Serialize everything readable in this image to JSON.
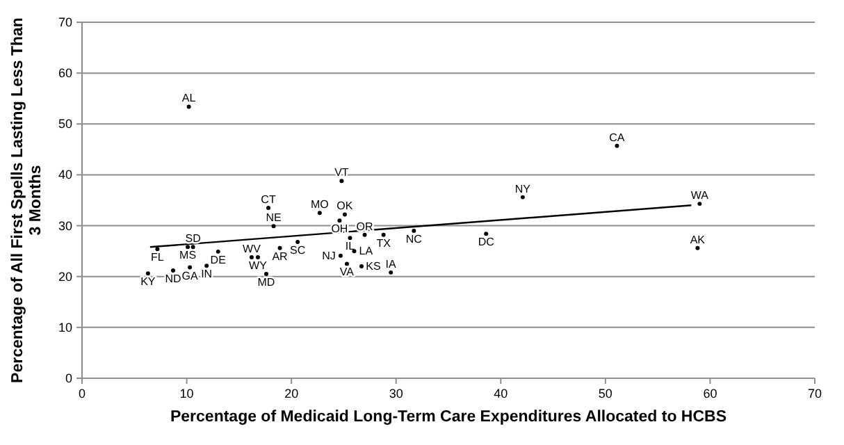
{
  "chart_data": {
    "type": "scatter",
    "xlabel": "Percentage of Medicaid Long-Term Care Expenditures Allocated to HCBS",
    "ylabel": "Percentage of All First Spells Lasting Less Than 3 Months",
    "xlim": [
      0,
      70
    ],
    "ylim": [
      0,
      70
    ],
    "xticks": [
      0,
      10,
      20,
      30,
      40,
      50,
      60,
      70
    ],
    "yticks": [
      0,
      10,
      20,
      30,
      40,
      50,
      60,
      70
    ],
    "grid": "y",
    "marker": "circle",
    "series": [
      {
        "name": "AL",
        "color": "#000000",
        "x": [
          10.2
        ],
        "values": [
          53.4
        ]
      },
      {
        "name": "VT",
        "color": "#000000",
        "x": [
          24.8
        ],
        "values": [
          38.8
        ]
      },
      {
        "name": "CT",
        "color": "#000000",
        "x": [
          17.8
        ],
        "values": [
          33.5
        ]
      },
      {
        "name": "MO",
        "color": "#000000",
        "x": [
          22.7
        ],
        "values": [
          32.5
        ]
      },
      {
        "name": "OK",
        "color": "#000000",
        "x": [
          25.1
        ],
        "values": [
          32.2
        ]
      },
      {
        "name": "OH",
        "color": "#000000",
        "x": [
          24.6
        ],
        "values": [
          31.0
        ]
      },
      {
        "name": "NE",
        "color": "#000000",
        "x": [
          18.3
        ],
        "values": [
          29.9
        ]
      },
      {
        "name": "NC",
        "color": "#000000",
        "x": [
          31.7
        ],
        "values": [
          29.0
        ]
      },
      {
        "name": "IL",
        "color": "#000000",
        "x": [
          25.6
        ],
        "values": [
          27.6
        ]
      },
      {
        "name": "OR",
        "color": "#000000",
        "x": [
          27.0
        ],
        "values": [
          28.2
        ]
      },
      {
        "name": "TX",
        "color": "#000000",
        "x": [
          28.8
        ],
        "values": [
          28.2
        ]
      },
      {
        "name": "SC",
        "color": "#000000",
        "x": [
          20.6
        ],
        "values": [
          26.8
        ]
      },
      {
        "name": "AR",
        "color": "#000000",
        "x": [
          18.9
        ],
        "values": [
          25.6
        ]
      },
      {
        "name": "FL",
        "color": "#000000",
        "x": [
          7.2
        ],
        "values": [
          25.4
        ]
      },
      {
        "name": "MS",
        "color": "#000000",
        "x": [
          10.1
        ],
        "values": [
          25.8
        ]
      },
      {
        "name": "SD",
        "color": "#000000",
        "x": [
          10.6
        ],
        "values": [
          25.8
        ]
      },
      {
        "name": "DE",
        "color": "#000000",
        "x": [
          13.0
        ],
        "values": [
          24.9
        ]
      },
      {
        "name": "WV",
        "color": "#000000",
        "x": [
          16.2
        ],
        "values": [
          23.8
        ]
      },
      {
        "name": "WY",
        "color": "#000000",
        "x": [
          16.8
        ],
        "values": [
          23.8
        ]
      },
      {
        "name": "KY",
        "color": "#000000",
        "x": [
          6.3
        ],
        "values": [
          20.6
        ]
      },
      {
        "name": "ND",
        "color": "#000000",
        "x": [
          8.7
        ],
        "values": [
          21.2
        ]
      },
      {
        "name": "GA",
        "color": "#000000",
        "x": [
          10.3
        ],
        "values": [
          21.8
        ]
      },
      {
        "name": "IN",
        "color": "#000000",
        "x": [
          11.9
        ],
        "values": [
          22.1
        ]
      },
      {
        "name": "MD",
        "color": "#000000",
        "x": [
          17.6
        ],
        "values": [
          20.5
        ]
      },
      {
        "name": "NJ",
        "color": "#000000",
        "x": [
          24.7
        ],
        "values": [
          24.1
        ]
      },
      {
        "name": "LA",
        "color": "#000000",
        "x": [
          26.0
        ],
        "values": [
          25.0
        ]
      },
      {
        "name": "VA",
        "color": "#000000",
        "x": [
          25.3
        ],
        "values": [
          22.5
        ]
      },
      {
        "name": "KS",
        "color": "#000000",
        "x": [
          26.7
        ],
        "values": [
          22.0
        ]
      },
      {
        "name": "IA",
        "color": "#000000",
        "x": [
          29.5
        ],
        "values": [
          20.8
        ]
      },
      {
        "name": "DC",
        "color": "#000000",
        "x": [
          38.6
        ],
        "values": [
          28.4
        ]
      },
      {
        "name": "NY",
        "color": "#000000",
        "x": [
          42.1
        ],
        "values": [
          35.6
        ]
      },
      {
        "name": "CA",
        "color": "#000000",
        "x": [
          51.1
        ],
        "values": [
          45.7
        ]
      },
      {
        "name": "WA",
        "color": "#000000",
        "x": [
          59.0
        ],
        "values": [
          34.3
        ]
      },
      {
        "name": "AK",
        "color": "#000000",
        "x": [
          58.8
        ],
        "values": [
          25.6
        ]
      },
      {
        "type": "line",
        "marker": "none",
        "color": "#000000",
        "x": [
          6.5,
          58.2
        ],
        "values": [
          25.8,
          34.0
        ]
      }
    ]
  }
}
